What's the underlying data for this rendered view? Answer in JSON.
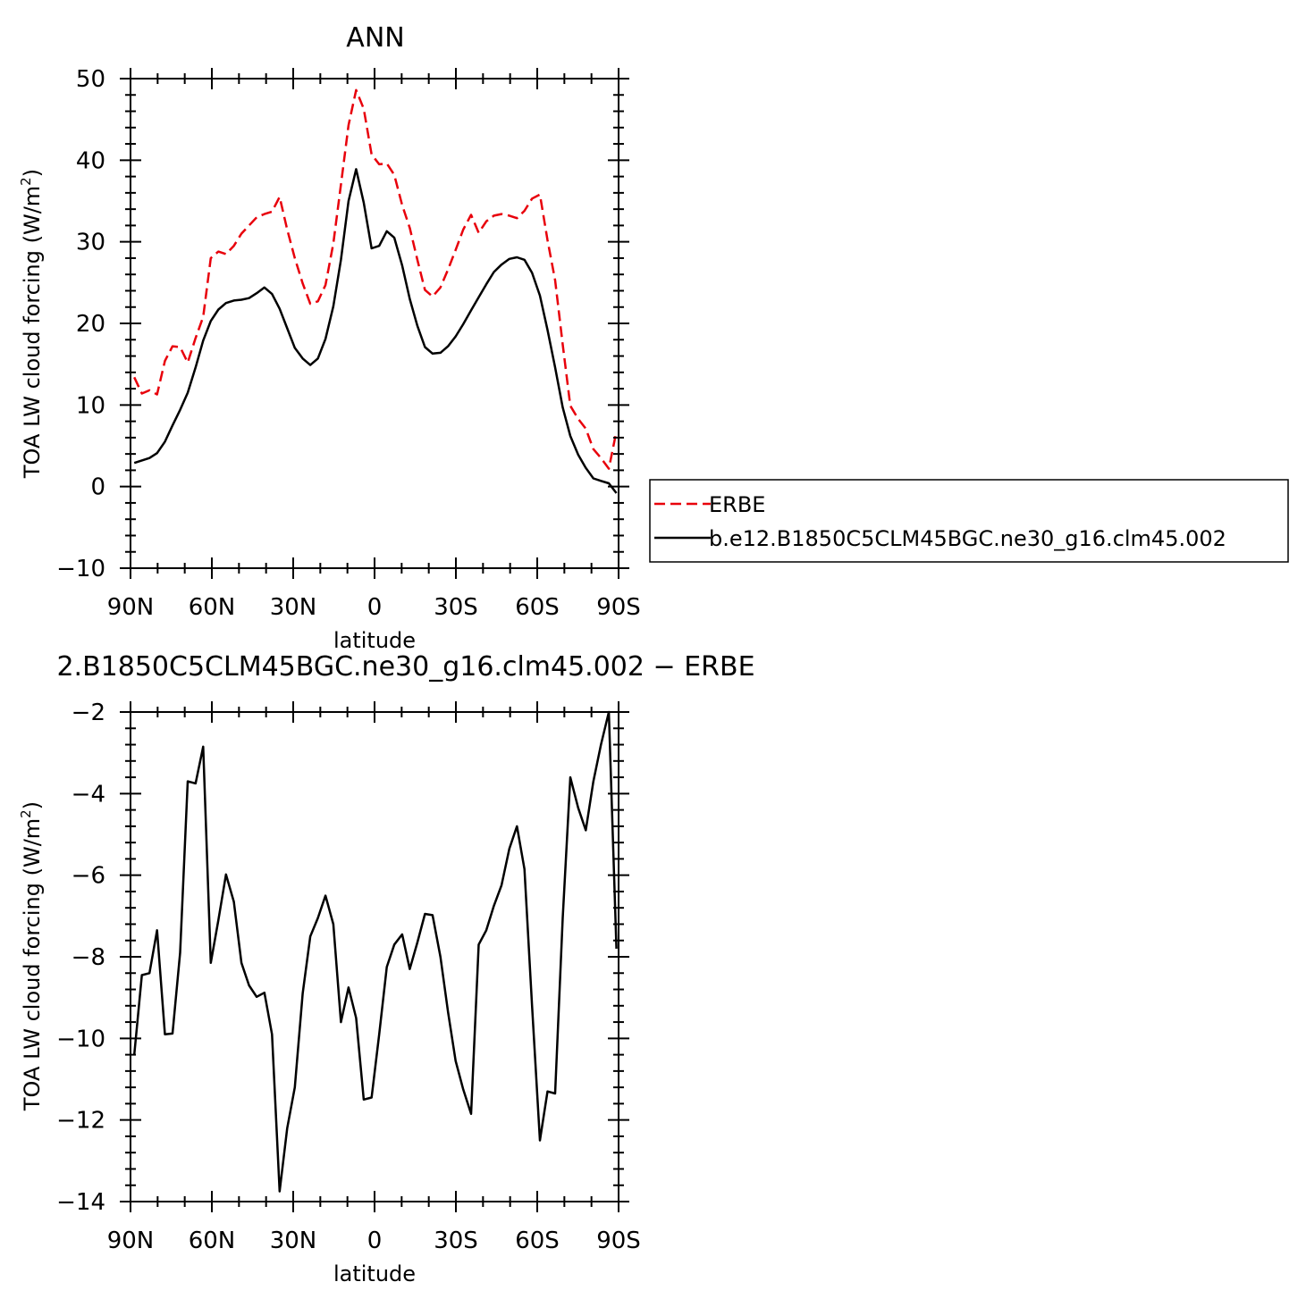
{
  "chart_data": [
    {
      "type": "line",
      "title": "ANN",
      "xlabel": "latitude",
      "ylabel": "TOA LW cloud forcing (W/m",
      "ylabel_sup": "2",
      "ylabel_close": ")",
      "xlim": [
        -90,
        90
      ],
      "ylim": [
        -10,
        50
      ],
      "xticks": [
        -90,
        -60,
        -30,
        0,
        30,
        60,
        90
      ],
      "xticklabels": [
        "90N",
        "60N",
        "30N",
        "0",
        "30S",
        "60S",
        "90S"
      ],
      "yticks": [
        -10,
        0,
        10,
        20,
        30,
        40,
        50
      ],
      "yticklabels": [
        "−10",
        "0",
        "10",
        "20",
        "30",
        "40",
        "50"
      ],
      "x": [
        -88.6,
        -85.8,
        -83.0,
        -80.2,
        -77.3,
        -74.5,
        -71.7,
        -68.9,
        -66.0,
        -63.2,
        -60.4,
        -57.6,
        -54.8,
        -51.9,
        -49.1,
        -46.3,
        -43.5,
        -40.6,
        -37.8,
        -35.0,
        -32.2,
        -29.4,
        -26.5,
        -23.7,
        -20.9,
        -18.1,
        -15.2,
        -12.4,
        -9.6,
        -6.8,
        -4.0,
        -1.1,
        1.7,
        4.5,
        7.3,
        10.2,
        13.0,
        15.8,
        18.6,
        21.4,
        24.3,
        27.1,
        29.9,
        32.7,
        35.6,
        38.4,
        41.2,
        44.0,
        46.8,
        49.7,
        52.5,
        55.3,
        58.1,
        61.0,
        63.8,
        66.6,
        69.4,
        72.2,
        75.1,
        77.9,
        80.7,
        83.5,
        86.4,
        89.2
      ],
      "series": [
        {
          "name": "ERBE",
          "color": "#e8000b",
          "dash": "dashed",
          "values": [
            13.4,
            11.4,
            11.8,
            11.3,
            15.4,
            17.2,
            17.1,
            15.2,
            18.2,
            20.8,
            28.0,
            28.8,
            28.5,
            29.5,
            31.0,
            32.0,
            33.0,
            33.4,
            33.7,
            35.5,
            31.5,
            28.0,
            24.9,
            22.4,
            22.7,
            24.7,
            29.8,
            37.0,
            44.3,
            48.6,
            46.3,
            40.7,
            39.5,
            39.6,
            38.2,
            34.5,
            31.7,
            27.8,
            24.1,
            23.3,
            24.4,
            26.6,
            29.0,
            31.5,
            33.3,
            31.1,
            32.5,
            33.2,
            33.4,
            33.2,
            32.9,
            33.8,
            35.3,
            35.8,
            30.2,
            25.3,
            17.4,
            9.9,
            8.3,
            7.1,
            4.6,
            3.5,
            2.2,
            6.8
          ]
        },
        {
          "name": "b.e12.B1850C5CLM45BGC.ne30_g16.clm45.002",
          "color": "#000000",
          "dash": "solid",
          "values": [
            2.9,
            3.2,
            3.5,
            4.1,
            5.5,
            7.5,
            9.4,
            11.5,
            14.6,
            17.9,
            20.3,
            21.7,
            22.5,
            22.8,
            22.9,
            23.1,
            23.7,
            24.4,
            23.6,
            21.8,
            19.4,
            17.0,
            15.7,
            14.9,
            15.7,
            18.1,
            22.1,
            27.8,
            35.0,
            38.9,
            34.8,
            29.2,
            29.5,
            31.3,
            30.5,
            27.1,
            23.0,
            19.7,
            17.1,
            16.3,
            16.4,
            17.2,
            18.4,
            19.9,
            21.6,
            23.2,
            24.8,
            26.3,
            27.2,
            27.9,
            28.1,
            27.8,
            26.2,
            23.4,
            19.2,
            14.6,
            9.7,
            6.2,
            3.9,
            2.3,
            1.0,
            0.7,
            0.4,
            -0.8
          ]
        }
      ],
      "legend": {
        "placement": "right",
        "entries": [
          "ERBE",
          "b.e12.B1850C5CLM45BGC.ne30_g16.clm45.002"
        ]
      },
      "grid": false
    },
    {
      "type": "line",
      "title": "2.B1850C5CLM45BGC.ne30_g16.clm45.002 − ERBE",
      "xlabel": "latitude",
      "ylabel": "TOA LW cloud forcing (W/m",
      "ylabel_sup": "2",
      "ylabel_close": ")",
      "xlim": [
        -90,
        90
      ],
      "ylim": [
        -14,
        -2
      ],
      "xticks": [
        -90,
        -60,
        -30,
        0,
        30,
        60,
        90
      ],
      "xticklabels": [
        "90N",
        "60N",
        "30N",
        "0",
        "30S",
        "60S",
        "90S"
      ],
      "yticks": [
        -14,
        -12,
        -10,
        -8,
        -6,
        -4,
        -2
      ],
      "yticklabels": [
        "−14",
        "−12",
        "−10",
        "−8",
        "−6",
        "−4",
        "−2"
      ],
      "x": [
        -88.6,
        -85.8,
        -83.0,
        -80.2,
        -77.3,
        -74.5,
        -71.7,
        -68.9,
        -66.0,
        -63.2,
        -60.4,
        -57.6,
        -54.8,
        -51.9,
        -49.1,
        -46.3,
        -43.5,
        -40.6,
        -37.8,
        -35.0,
        -32.2,
        -29.4,
        -26.5,
        -23.7,
        -20.9,
        -18.1,
        -15.2,
        -12.4,
        -9.6,
        -6.8,
        -4.0,
        -1.1,
        1.7,
        4.5,
        7.3,
        10.2,
        13.0,
        15.8,
        18.6,
        21.4,
        24.3,
        27.1,
        29.9,
        32.7,
        35.6,
        38.4,
        41.2,
        44.0,
        46.8,
        49.7,
        52.5,
        55.3,
        58.1,
        61.0,
        63.8,
        66.6,
        69.4,
        72.2,
        75.1,
        77.9,
        80.7,
        83.5,
        86.4,
        89.2
      ],
      "series": [
        {
          "color": "#000000",
          "dash": "solid",
          "values": [
            -10.4,
            -8.45,
            -8.4,
            -7.35,
            -9.9,
            -9.88,
            -7.9,
            -3.7,
            -3.75,
            -2.85,
            -8.15,
            -7.1,
            -5.98,
            -6.65,
            -8.15,
            -8.7,
            -8.98,
            -8.88,
            -9.9,
            -13.75,
            -12.2,
            -11.2,
            -8.9,
            -7.5,
            -7.05,
            -6.5,
            -7.2,
            -9.6,
            -8.75,
            -9.5,
            -11.5,
            -11.45,
            -9.9,
            -8.25,
            -7.7,
            -7.45,
            -8.3,
            -7.65,
            -6.95,
            -6.98,
            -8.0,
            -9.35,
            -10.55,
            -11.25,
            -11.85,
            -7.7,
            -7.35,
            -6.75,
            -6.25,
            -5.35,
            -4.8,
            -5.85,
            -9.2,
            -12.5,
            -11.3,
            -11.35,
            -7.05,
            -3.6,
            -4.35,
            -4.9,
            -3.7,
            -2.8,
            -2.0,
            -7.8
          ]
        }
      ],
      "grid": false
    }
  ]
}
